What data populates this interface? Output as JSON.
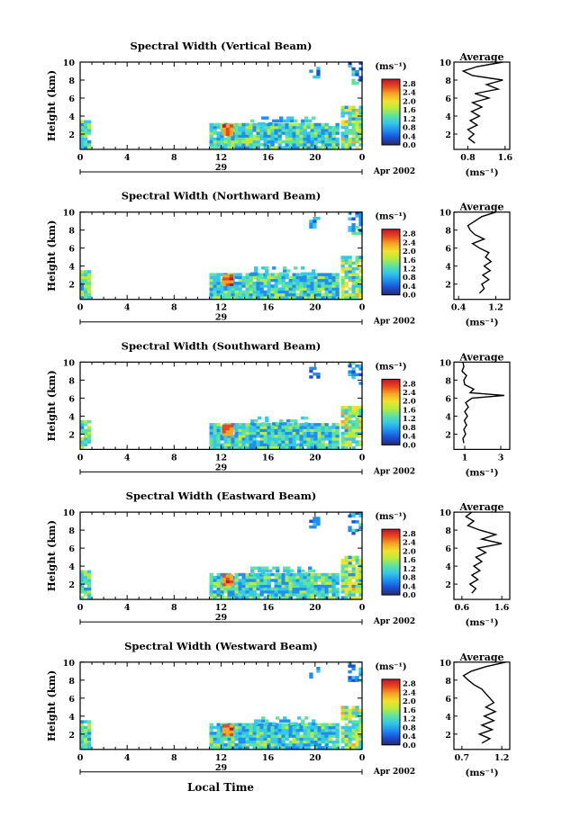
{
  "figure": {
    "x_axis_title": "Local Time",
    "date_label": "Apr 2002",
    "day_label": "29",
    "colorbar_unit": "(ms⁻¹)",
    "colorbar_ticks": [
      "2.8",
      "2.4",
      "2.0",
      "1.6",
      "1.2",
      "0.8",
      "0.4",
      "0.0"
    ],
    "colormap": [
      "#2a2a6a",
      "#1b4fd6",
      "#1e8ff0",
      "#35c8e8",
      "#5ee2a0",
      "#b8ec3c",
      "#f3e12e",
      "#f5a623",
      "#e8491d",
      "#c0152a"
    ],
    "profile_title": "Average",
    "profile_unit": "(ms⁻¹)"
  },
  "chart_data": [
    {
      "type": "heatmap",
      "title": "Spectral Width (Vertical Beam)",
      "xlabel": "",
      "ylabel": "Height (km)",
      "xticks": [
        "0",
        "4",
        "8",
        "12",
        "16",
        "20",
        "0"
      ],
      "yticks": [
        "10",
        "8",
        "6",
        "4",
        "2"
      ],
      "xlim": [
        0,
        24
      ],
      "ylim": [
        0.3,
        10
      ],
      "colorbar_range": [
        0,
        3.0
      ],
      "profile": {
        "title": "Average",
        "xticks": [
          "0.8",
          "1.6"
        ],
        "xlim": [
          0.5,
          1.7
        ],
        "heights": [
          1.0,
          1.5,
          2.0,
          2.5,
          3.0,
          3.5,
          4.0,
          4.5,
          5.0,
          5.5,
          6.0,
          6.5,
          7.0,
          7.5,
          8.0,
          8.5,
          9.0,
          9.5,
          10.0
        ],
        "values": [
          0.95,
          0.82,
          0.93,
          0.8,
          1.0,
          0.85,
          1.05,
          0.88,
          1.1,
          0.9,
          1.25,
          0.95,
          1.45,
          1.2,
          1.55,
          0.9,
          0.7,
          1.0,
          1.55
        ]
      }
    },
    {
      "type": "heatmap",
      "title": "Spectral Width (Northward Beam)",
      "xlabel": "",
      "ylabel": "Height (km)",
      "xticks": [
        "0",
        "4",
        "8",
        "12",
        "16",
        "20",
        "0"
      ],
      "yticks": [
        "10",
        "8",
        "6",
        "4",
        "2"
      ],
      "xlim": [
        0,
        24
      ],
      "ylim": [
        0.3,
        10
      ],
      "colorbar_range": [
        0,
        3.0
      ],
      "profile": {
        "title": "Average",
        "xticks": [
          "0.4",
          "1.2"
        ],
        "xlim": [
          0.3,
          1.5
        ],
        "heights": [
          1.0,
          1.5,
          2.0,
          2.5,
          3.0,
          3.5,
          4.0,
          4.5,
          5.0,
          5.5,
          6.0,
          6.5,
          7.0,
          7.5,
          8.0,
          8.5,
          9.0,
          9.5,
          10.0
        ],
        "values": [
          0.85,
          0.95,
          0.9,
          1.05,
          0.92,
          1.08,
          0.95,
          1.1,
          0.98,
          1.05,
          0.85,
          0.7,
          0.95,
          0.75,
          0.65,
          0.6,
          0.75,
          0.9,
          1.2
        ]
      }
    },
    {
      "type": "heatmap",
      "title": "Spectral Width (Southward Beam)",
      "xlabel": "",
      "ylabel": "Height (km)",
      "xticks": [
        "0",
        "4",
        "8",
        "12",
        "16",
        "20",
        "0"
      ],
      "yticks": [
        "10",
        "8",
        "6",
        "4",
        "2"
      ],
      "xlim": [
        0,
        24
      ],
      "ylim": [
        0.3,
        10
      ],
      "colorbar_range": [
        0,
        3.0
      ],
      "profile": {
        "title": "Average",
        "xticks": [
          "1",
          "3"
        ],
        "xlim": [
          0.4,
          3.5
        ],
        "heights": [
          1.0,
          1.5,
          2.0,
          2.5,
          3.0,
          3.5,
          4.0,
          4.5,
          5.0,
          5.5,
          6.0,
          6.3,
          6.6,
          7.0,
          7.5,
          8.0,
          8.5,
          9.0,
          9.5,
          10.0
        ],
        "values": [
          0.95,
          0.9,
          1.05,
          0.95,
          1.1,
          0.98,
          1.15,
          1.0,
          1.2,
          1.05,
          1.4,
          3.2,
          1.3,
          1.5,
          1.0,
          0.95,
          1.1,
          0.85,
          0.95,
          0.9
        ]
      }
    },
    {
      "type": "heatmap",
      "title": "Spectral Width (Eastward Beam)",
      "xlabel": "",
      "ylabel": "Height (km)",
      "xticks": [
        "0",
        "4",
        "8",
        "12",
        "16",
        "20",
        "0"
      ],
      "yticks": [
        "10",
        "8",
        "6",
        "4",
        "2"
      ],
      "xlim": [
        0,
        24
      ],
      "ylim": [
        0.3,
        10
      ],
      "colorbar_range": [
        0,
        3.0
      ],
      "profile": {
        "title": "Average",
        "xticks": [
          "0.6",
          "1.6"
        ],
        "xlim": [
          0.4,
          1.8
        ],
        "heights": [
          1.0,
          1.5,
          2.0,
          2.5,
          3.0,
          3.5,
          4.0,
          4.5,
          5.0,
          5.5,
          6.0,
          6.5,
          7.0,
          7.5,
          8.0,
          8.5,
          9.0,
          9.5,
          10.0
        ],
        "values": [
          0.85,
          0.95,
          0.8,
          1.0,
          0.85,
          1.05,
          0.9,
          1.1,
          0.95,
          1.2,
          1.0,
          1.6,
          1.1,
          1.45,
          1.05,
          0.75,
          0.9,
          0.7,
          0.85
        ]
      }
    },
    {
      "type": "heatmap",
      "title": "Spectral Width (Westward Beam)",
      "xlabel": "",
      "ylabel": "Height (km)",
      "xticks": [
        "0",
        "4",
        "8",
        "12",
        "16",
        "20",
        "0"
      ],
      "yticks": [
        "10",
        "8",
        "6",
        "4",
        "2"
      ],
      "xlim": [
        0,
        24
      ],
      "ylim": [
        0.3,
        10
      ],
      "colorbar_range": [
        0,
        3.0
      ],
      "profile": {
        "title": "Average",
        "xticks": [
          "0.7",
          "1.2"
        ],
        "xlim": [
          0.6,
          1.3
        ],
        "heights": [
          1.0,
          1.5,
          2.0,
          2.5,
          3.0,
          3.5,
          4.0,
          4.5,
          5.0,
          5.5,
          6.0,
          6.5,
          7.0,
          7.5,
          8.0,
          8.5,
          9.0,
          9.5,
          10.0
        ],
        "values": [
          0.95,
          1.05,
          0.92,
          1.08,
          0.95,
          1.1,
          0.98,
          1.12,
          1.0,
          1.1,
          1.05,
          1.0,
          0.95,
          0.85,
          0.78,
          0.72,
          0.82,
          1.0,
          1.25
        ]
      }
    }
  ]
}
